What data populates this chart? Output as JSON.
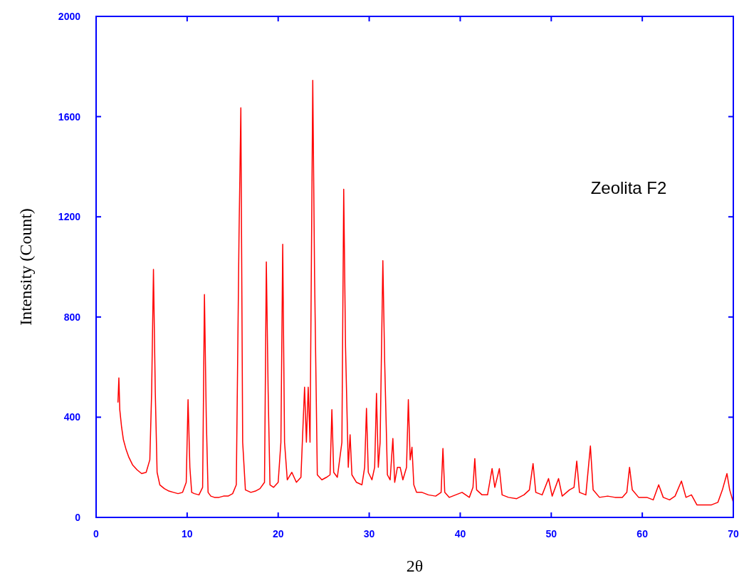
{
  "chart_data": {
    "type": "line",
    "xlabel": "2θ",
    "ylabel": "Intensity (Count)",
    "annotations": [
      "Zeolita F2"
    ],
    "xlim": [
      0,
      70
    ],
    "ylim": [
      0,
      2000
    ],
    "xticks": [
      0,
      10,
      20,
      30,
      40,
      50,
      60,
      70
    ],
    "yticks": [
      0,
      400,
      800,
      1200,
      1600,
      2000
    ],
    "grid": false,
    "series": [
      {
        "color": "#ff0000",
        "x": [
          2.4,
          2.5,
          2.6,
          2.8,
          3.0,
          3.3,
          3.6,
          4.0,
          4.5,
          5.0,
          5.5,
          5.9,
          6.1,
          6.3,
          6.5,
          6.7,
          7.0,
          7.5,
          8.0,
          8.5,
          9.0,
          9.5,
          9.9,
          10.1,
          10.3,
          10.5,
          10.8,
          11.3,
          11.7,
          11.9,
          12.1,
          12.3,
          12.6,
          13.0,
          13.5,
          14.0,
          14.5,
          15.0,
          15.4,
          15.7,
          15.9,
          16.1,
          16.4,
          17.0,
          17.5,
          18.0,
          18.5,
          18.7,
          18.9,
          19.1,
          19.5,
          20.0,
          20.3,
          20.5,
          20.7,
          21.0,
          21.5,
          22.0,
          22.5,
          22.9,
          23.1,
          23.3,
          23.5,
          23.8,
          24.0,
          24.3,
          24.8,
          25.3,
          25.7,
          25.9,
          26.1,
          26.5,
          27.0,
          27.2,
          27.4,
          27.7,
          27.9,
          28.1,
          28.6,
          29.2,
          29.5,
          29.7,
          29.9,
          30.3,
          30.6,
          30.8,
          31.0,
          31.2,
          31.5,
          31.7,
          32.0,
          32.3,
          32.6,
          32.8,
          33.1,
          33.4,
          33.7,
          34.1,
          34.3,
          34.5,
          34.7,
          34.9,
          35.2,
          35.8,
          36.5,
          37.3,
          37.9,
          38.1,
          38.3,
          38.8,
          39.5,
          40.2,
          41.0,
          41.4,
          41.6,
          41.8,
          42.4,
          43.0,
          43.5,
          43.8,
          44.3,
          44.6,
          45.3,
          46.2,
          47.0,
          47.6,
          48.0,
          48.3,
          49.0,
          49.7,
          50.1,
          50.8,
          51.2,
          52.0,
          52.5,
          52.8,
          53.1,
          53.8,
          54.3,
          54.6,
          55.3,
          56.2,
          57.0,
          57.8,
          58.3,
          58.6,
          58.9,
          59.6,
          60.5,
          61.2,
          61.8,
          62.3,
          63.0,
          63.6,
          64.3,
          64.8,
          65.4,
          66.0,
          66.8,
          67.6,
          68.3,
          68.8,
          69.3,
          69.6,
          70.0
        ],
        "values": [
          460,
          557,
          430,
          360,
          310,
          270,
          240,
          210,
          190,
          175,
          180,
          230,
          500,
          990,
          500,
          180,
          130,
          115,
          105,
          100,
          95,
          100,
          140,
          470,
          200,
          100,
          95,
          90,
          120,
          890,
          400,
          100,
          85,
          80,
          80,
          85,
          85,
          95,
          130,
          1130,
          1635,
          300,
          110,
          100,
          105,
          115,
          140,
          1020,
          500,
          130,
          120,
          140,
          300,
          1090,
          300,
          150,
          180,
          140,
          160,
          520,
          300,
          520,
          300,
          1745,
          960,
          170,
          150,
          160,
          170,
          430,
          180,
          160,
          300,
          1310,
          680,
          200,
          330,
          170,
          140,
          130,
          200,
          435,
          180,
          150,
          200,
          495,
          200,
          300,
          1025,
          620,
          170,
          150,
          315,
          140,
          200,
          200,
          150,
          200,
          470,
          230,
          280,
          130,
          100,
          100,
          90,
          85,
          100,
          275,
          100,
          80,
          90,
          100,
          80,
          120,
          235,
          110,
          90,
          90,
          195,
          120,
          195,
          90,
          80,
          75,
          90,
          110,
          215,
          100,
          90,
          155,
          85,
          155,
          85,
          110,
          120,
          225,
          100,
          90,
          285,
          110,
          80,
          85,
          80,
          80,
          100,
          200,
          110,
          80,
          80,
          70,
          130,
          80,
          70,
          85,
          145,
          80,
          90,
          50,
          50,
          50,
          60,
          110,
          175,
          110,
          60
        ]
      }
    ]
  }
}
